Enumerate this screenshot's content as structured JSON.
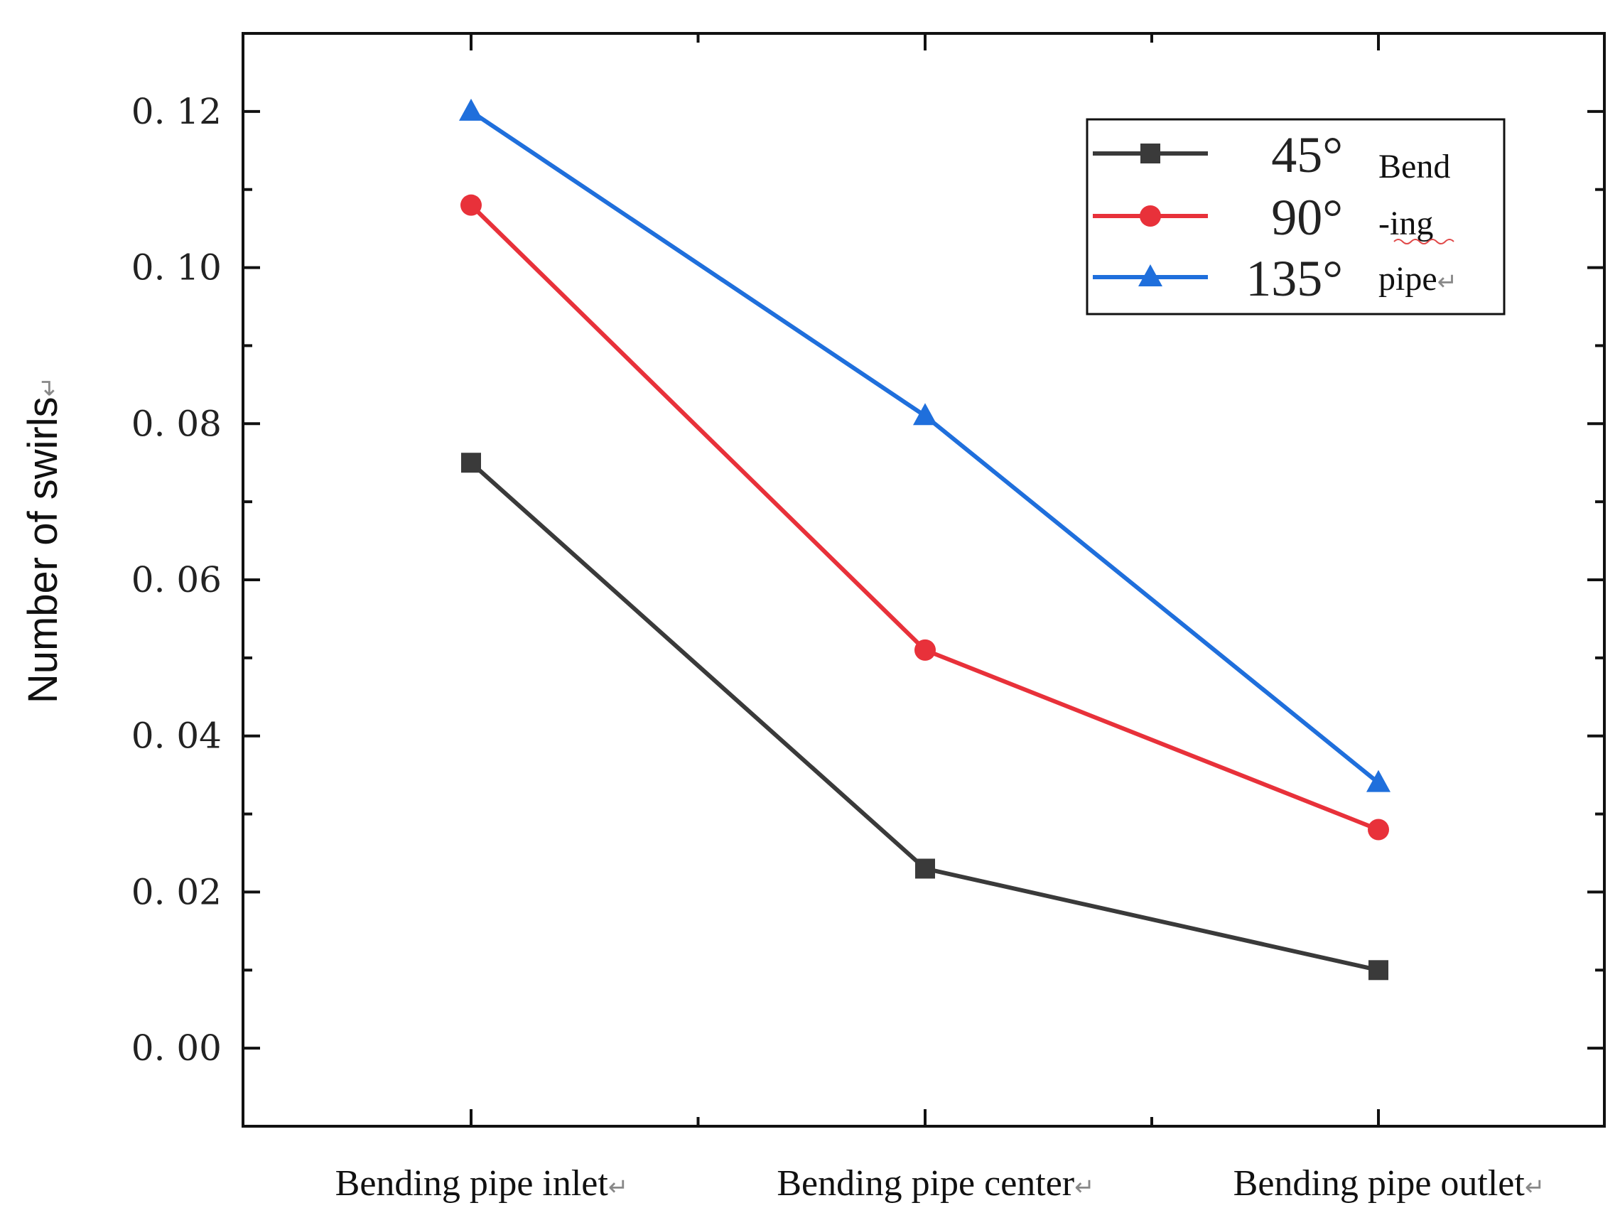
{
  "chart_data": {
    "type": "line",
    "categories": [
      "Bending pipe inlet",
      "Bending pipe center",
      "Bending pipe outlet"
    ],
    "series": [
      {
        "name": "45°",
        "values": [
          0.075,
          0.023,
          0.01
        ],
        "color": "#3a3a3a",
        "marker": "square"
      },
      {
        "name": "90°",
        "values": [
          0.108,
          0.051,
          0.028
        ],
        "color": "#e8313a",
        "marker": "circle"
      },
      {
        "name": "135°",
        "values": [
          0.12,
          0.081,
          0.034
        ],
        "color": "#1f6fdc",
        "marker": "triangle"
      }
    ],
    "ylabel": "Number of swirls",
    "ylim": [
      -0.01,
      0.13
    ],
    "yticks": [
      "0. 00",
      "0. 02",
      "0. 04",
      "0. 06",
      "0. 08",
      "0. 10",
      "0. 12"
    ],
    "ytick_values": [
      0.0,
      0.02,
      0.04,
      0.06,
      0.08,
      0.1,
      0.12
    ],
    "legend": {
      "position": "top-right",
      "group_label_lines": [
        "Bend",
        "-ing",
        "pipe"
      ]
    },
    "return_mark": "↵",
    "grid": false
  }
}
